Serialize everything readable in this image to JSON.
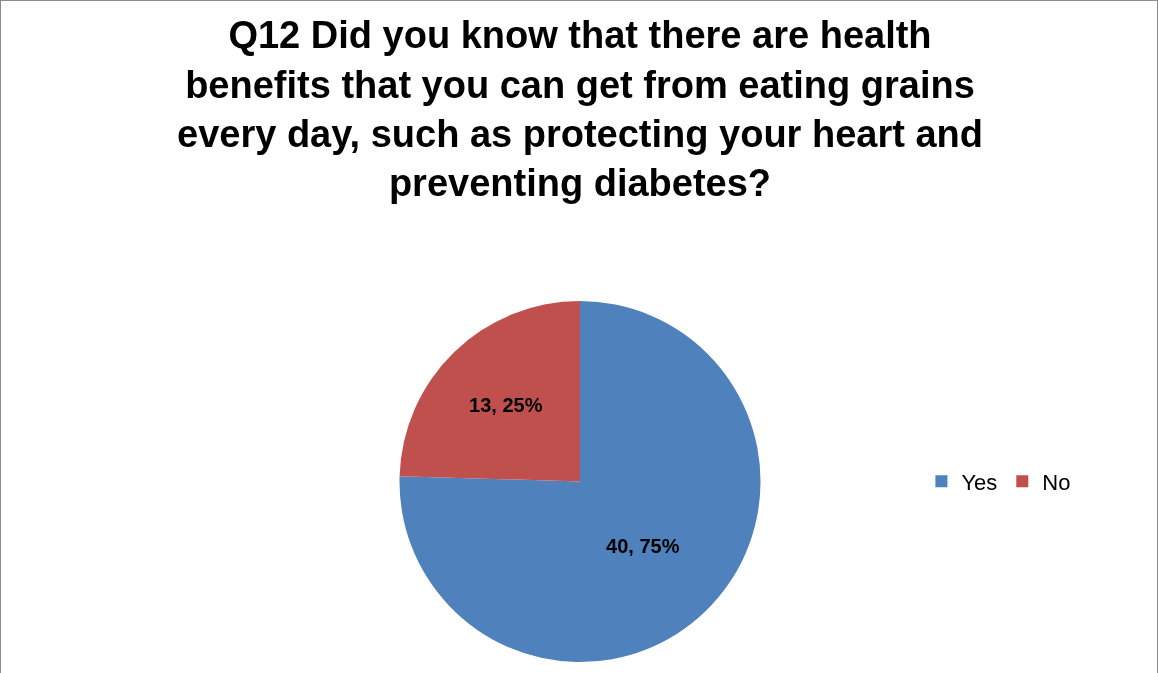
{
  "chart_data": {
    "type": "pie",
    "title": "Q12 Did you know that there are health benefits that you can get from eating grains every day, such as protecting your heart and preventing diabetes?",
    "categories": [
      "Yes",
      "No"
    ],
    "values": [
      40,
      13
    ],
    "colors": [
      "#4f81bd",
      "#c0504d"
    ],
    "value_labels": [
      "40, 75%",
      "13, 25%"
    ],
    "legend": "right"
  }
}
